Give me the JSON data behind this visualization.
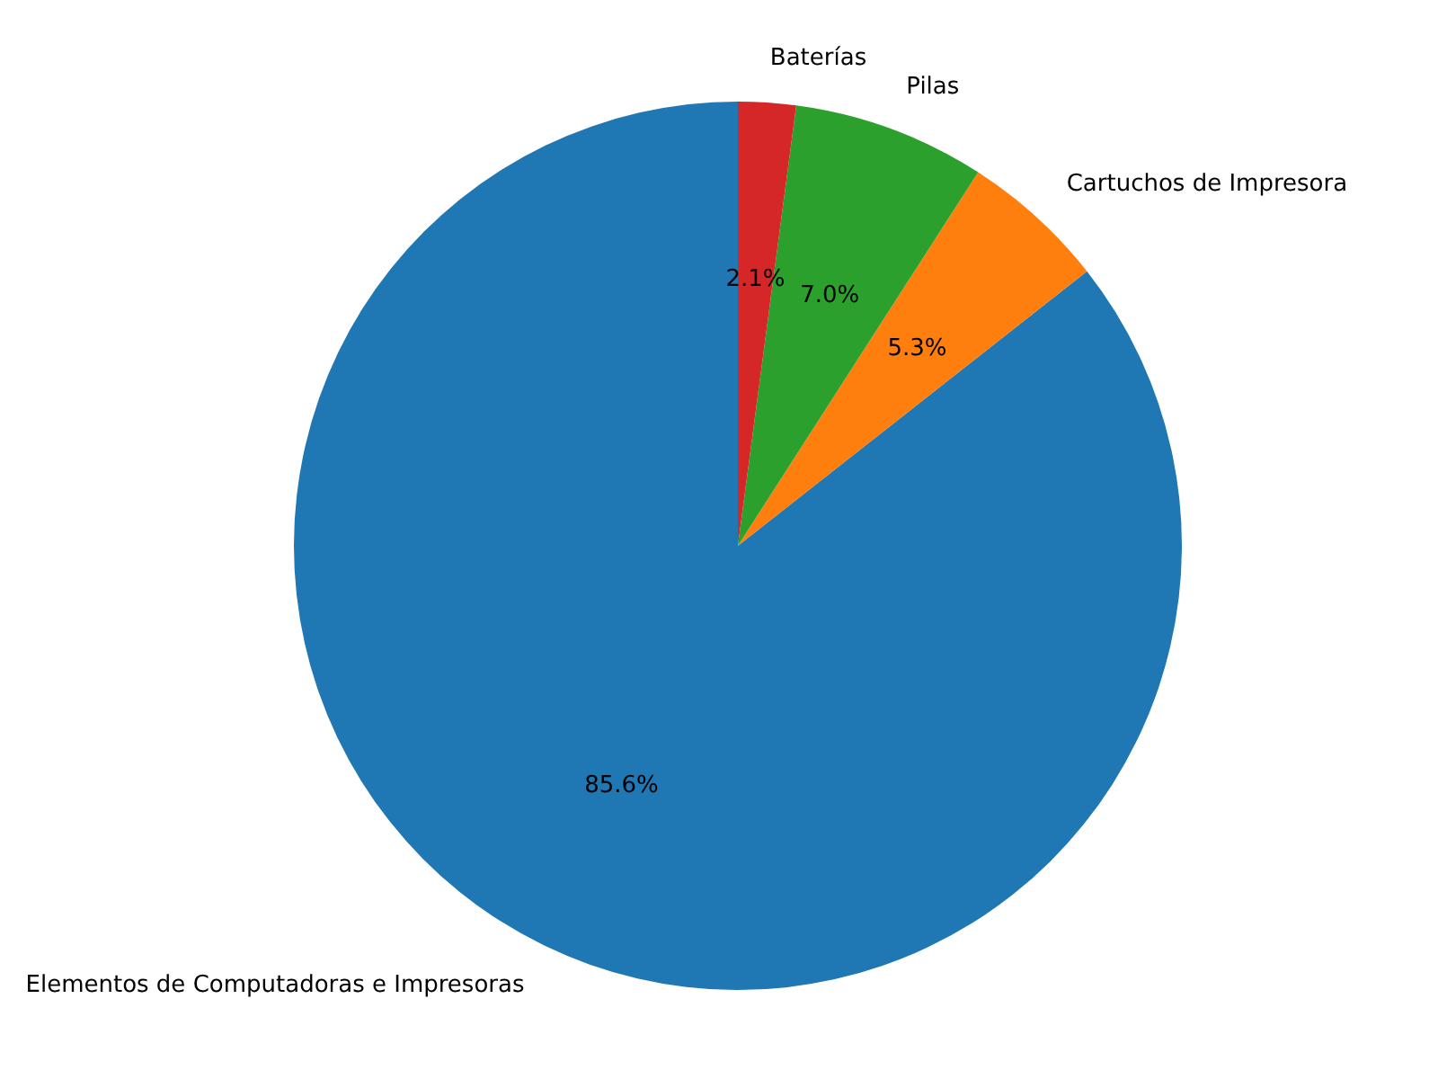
{
  "chart_data": {
    "type": "pie",
    "categories": [
      "Elementos de Computadoras e Impresoras",
      "Cartuchos de Impresora",
      "Pilas",
      "Baterías"
    ],
    "values": [
      85.6,
      5.3,
      7.0,
      2.1
    ],
    "colors": [
      "#1f77b4",
      "#ff7f0e",
      "#2ca02c",
      "#d62728"
    ],
    "value_labels": [
      "85.6%",
      "5.3%",
      "7.0%",
      "2.1%"
    ]
  }
}
